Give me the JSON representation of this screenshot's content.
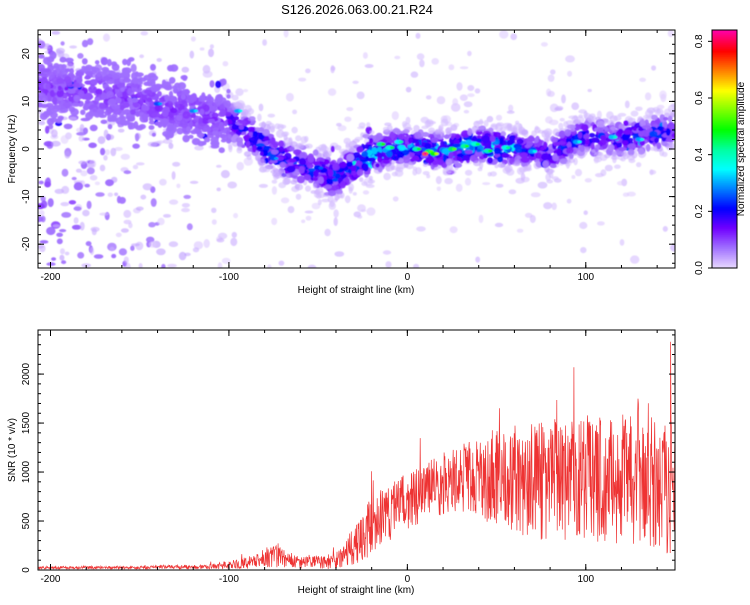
{
  "title": "S126.2026.063.00.21.R24",
  "chart_data": [
    {
      "type": "heatmap",
      "name": "spectrogram",
      "xlabel": "Height of straight line (km)",
      "ylabel": "Frequency (Hz)",
      "xlim": [
        -207,
        150
      ],
      "ylim": [
        -25,
        25
      ],
      "xticks": [
        -200,
        -100,
        0,
        100
      ],
      "yticks": [
        20,
        10,
        0,
        -10,
        -20
      ],
      "colorbar": {
        "label": "Normalized spectral amplitude",
        "range": [
          0,
          0.84
        ],
        "ticks": [
          "0.8",
          "0.6",
          "0.4",
          "0.2",
          "0.0"
        ],
        "tick_values": [
          0.8,
          0.6,
          0.4,
          0.2,
          0.0
        ],
        "colors": [
          "#ff00a0",
          "#ff0000",
          "#ff8000",
          "#ffff00",
          "#80ff00",
          "#00ff00",
          "#00ffa0",
          "#00ffff",
          "#0080ff",
          "#0000ff",
          "#7000ff",
          "#a070ff",
          "#e6d6ff"
        ]
      },
      "ridge_center_hz": [
        {
          "x": -200,
          "y": 13
        },
        {
          "x": -175,
          "y": 12
        },
        {
          "x": -150,
          "y": 10
        },
        {
          "x": -125,
          "y": 8
        },
        {
          "x": -100,
          "y": 6
        },
        {
          "x": -85,
          "y": 2
        },
        {
          "x": -70,
          "y": -2
        },
        {
          "x": -55,
          "y": -4
        },
        {
          "x": -40,
          "y": -6
        },
        {
          "x": -25,
          "y": -2
        },
        {
          "x": -10,
          "y": 0
        },
        {
          "x": 0,
          "y": 0.5
        },
        {
          "x": 20,
          "y": -0.5
        },
        {
          "x": 40,
          "y": 1
        },
        {
          "x": 60,
          "y": 0
        },
        {
          "x": 80,
          "y": -1
        },
        {
          "x": 100,
          "y": 3
        },
        {
          "x": 120,
          "y": 2
        },
        {
          "x": 150,
          "y": 4
        }
      ],
      "peak": {
        "x": 10,
        "y": -1,
        "amplitude": 0.84
      }
    },
    {
      "type": "line",
      "name": "snr",
      "xlabel": "Height of straight line (km)",
      "ylabel": "SNR (10 * v/v)",
      "xlim": [
        -207,
        150
      ],
      "ylim": [
        0,
        2450
      ],
      "xticks": [
        -200,
        -100,
        0,
        100
      ],
      "yticks": [
        0,
        500,
        1000,
        1500,
        2000
      ],
      "color": "#ee3333",
      "envelope": [
        {
          "x": -207,
          "mean": 25,
          "spread": 15
        },
        {
          "x": -150,
          "mean": 25,
          "spread": 15
        },
        {
          "x": -110,
          "mean": 35,
          "spread": 25
        },
        {
          "x": -90,
          "mean": 70,
          "spread": 60
        },
        {
          "x": -75,
          "mean": 150,
          "spread": 120
        },
        {
          "x": -60,
          "mean": 70,
          "spread": 60
        },
        {
          "x": -40,
          "mean": 90,
          "spread": 80
        },
        {
          "x": -30,
          "mean": 250,
          "spread": 200
        },
        {
          "x": -20,
          "mean": 450,
          "spread": 300
        },
        {
          "x": -10,
          "mean": 600,
          "spread": 300
        },
        {
          "x": 10,
          "mean": 800,
          "spread": 300
        },
        {
          "x": 30,
          "mean": 950,
          "spread": 350
        },
        {
          "x": 50,
          "mean": 950,
          "spread": 500
        },
        {
          "x": 70,
          "mean": 900,
          "spread": 600
        },
        {
          "x": 100,
          "mean": 950,
          "spread": 650
        },
        {
          "x": 130,
          "mean": 900,
          "spread": 700
        },
        {
          "x": 150,
          "mean": 850,
          "spread": 700
        }
      ],
      "max_value": 2450
    }
  ]
}
